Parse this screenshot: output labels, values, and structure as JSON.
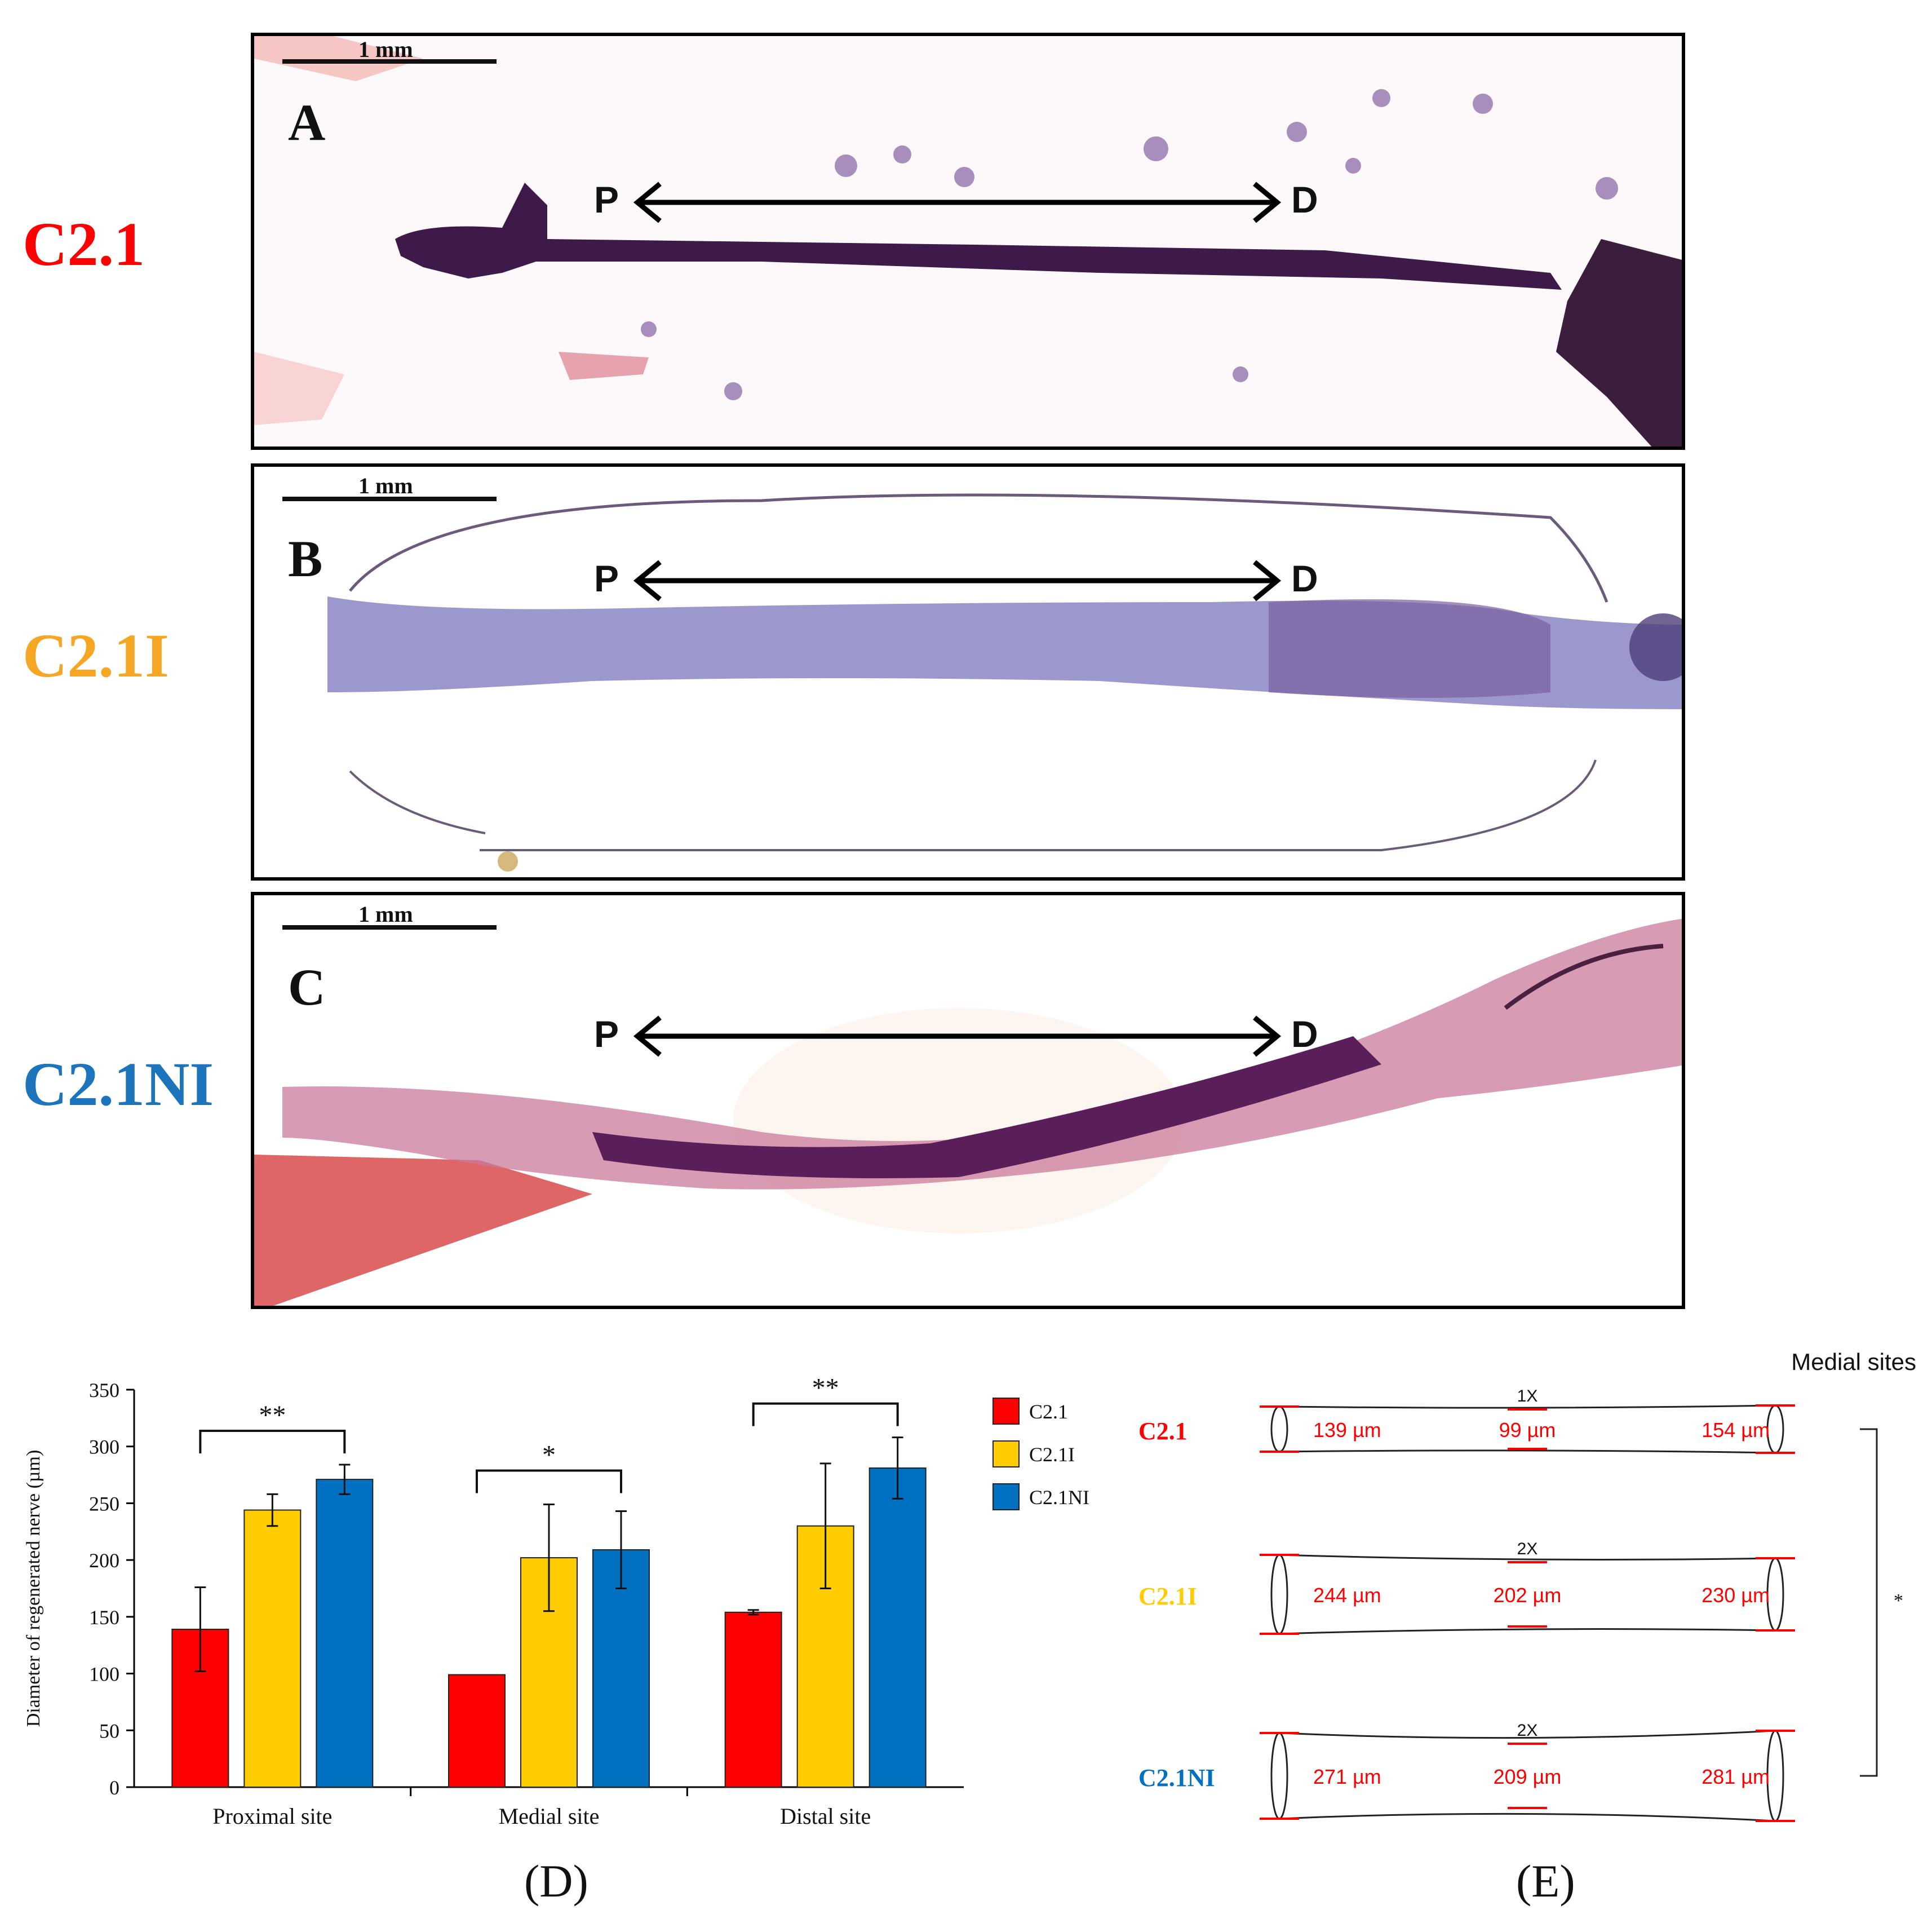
{
  "rows": [
    {
      "label": "C2.1",
      "color": "#ff0000",
      "panel_letter": "A",
      "scale_bar": "1 mm",
      "proximal": "P",
      "distal": "D"
    },
    {
      "label": "C2.1I",
      "color": "#f5a623",
      "panel_letter": "B",
      "scale_bar": "1 mm",
      "proximal": "P",
      "distal": "D"
    },
    {
      "label": "C2.1NI",
      "color": "#1c75bc",
      "panel_letter": "C",
      "scale_bar": "1 mm",
      "proximal": "P",
      "distal": "D"
    }
  ],
  "captions": {
    "d": "(D)",
    "e": "(E)"
  },
  "chart_data": [
    {
      "type": "bar",
      "title": "",
      "xlabel": "",
      "ylabel": "Diameter of regenerated nerve (µm)",
      "ylim": [
        0,
        350
      ],
      "yticks": [
        "0",
        "50",
        "100",
        "150",
        "200",
        "250",
        "300",
        "350"
      ],
      "categories": [
        "Proximal site",
        "Medial site",
        "Distal site"
      ],
      "series": [
        {
          "name": "C2.1",
          "color": "#ff0000",
          "values": [
            139,
            99,
            154
          ],
          "errors": [
            37,
            0,
            2
          ]
        },
        {
          "name": "C2.1I",
          "color": "#ffcc00",
          "values": [
            244,
            202,
            230
          ],
          "errors": [
            14,
            47,
            55
          ]
        },
        {
          "name": "C2.1NI",
          "color": "#0070c0",
          "values": [
            271,
            209,
            281
          ],
          "errors": [
            13,
            34,
            27
          ]
        }
      ],
      "significance": [
        "**",
        "*",
        "**"
      ],
      "legend": "right"
    },
    {
      "type": "diagram",
      "title": "Medial sites",
      "rows": [
        {
          "name": "C2.1",
          "color": "#ff0000",
          "scale": "1X",
          "proximal": "139 µm",
          "medial": "99 µm",
          "distal": "154 µm"
        },
        {
          "name": "C2.1I",
          "color": "#ffcc00",
          "scale": "2X",
          "proximal": "244 µm",
          "medial": "202 µm",
          "distal": "230 µm"
        },
        {
          "name": "C2.1NI",
          "color": "#0070c0",
          "scale": "2X",
          "proximal": "271 µm",
          "medial": "209 µm",
          "distal": "281 µm"
        }
      ],
      "significance": "*"
    }
  ]
}
